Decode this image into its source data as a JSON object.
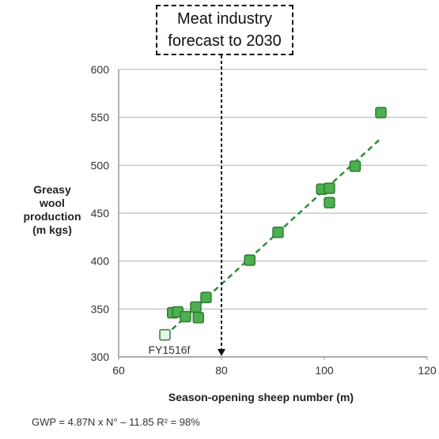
{
  "callout": {
    "line1": "Meat industry",
    "line2": "forecast to 2030",
    "x_value": 80
  },
  "formula": "GWP = 4.87N x N° – 11.85   R² = 98%",
  "chart_data": {
    "type": "scatter",
    "title": "",
    "xlabel": "Season-opening sheep number (m)",
    "ylabel": [
      "Greasy",
      "wool",
      "production",
      "(m kgs)"
    ],
    "xlim": [
      60,
      120
    ],
    "ylim": [
      300,
      600
    ],
    "x_ticks": [
      60,
      80,
      100,
      120
    ],
    "y_ticks": [
      300,
      350,
      400,
      450,
      500,
      550,
      600
    ],
    "grid": "horizontal",
    "colors": {
      "point": "#4caf50",
      "point_edge": "#2e7d32",
      "forecast_point": "#e8f5e9",
      "trend": "#2e8b3a"
    },
    "points": [
      {
        "x": 70.5,
        "y": 346
      },
      {
        "x": 71.5,
        "y": 347
      },
      {
        "x": 73,
        "y": 342
      },
      {
        "x": 75,
        "y": 352
      },
      {
        "x": 75.5,
        "y": 341
      },
      {
        "x": 77,
        "y": 362
      },
      {
        "x": 85.5,
        "y": 401
      },
      {
        "x": 91,
        "y": 430
      },
      {
        "x": 99.5,
        "y": 475
      },
      {
        "x": 101,
        "y": 476
      },
      {
        "x": 101,
        "y": 461
      },
      {
        "x": 106,
        "y": 499
      },
      {
        "x": 111,
        "y": 555
      }
    ],
    "forecast_point": {
      "x": 69,
      "y": 323,
      "label": "FY1516f"
    },
    "trendline": {
      "x": [
        69,
        111
      ],
      "y": [
        322,
        528
      ]
    }
  }
}
